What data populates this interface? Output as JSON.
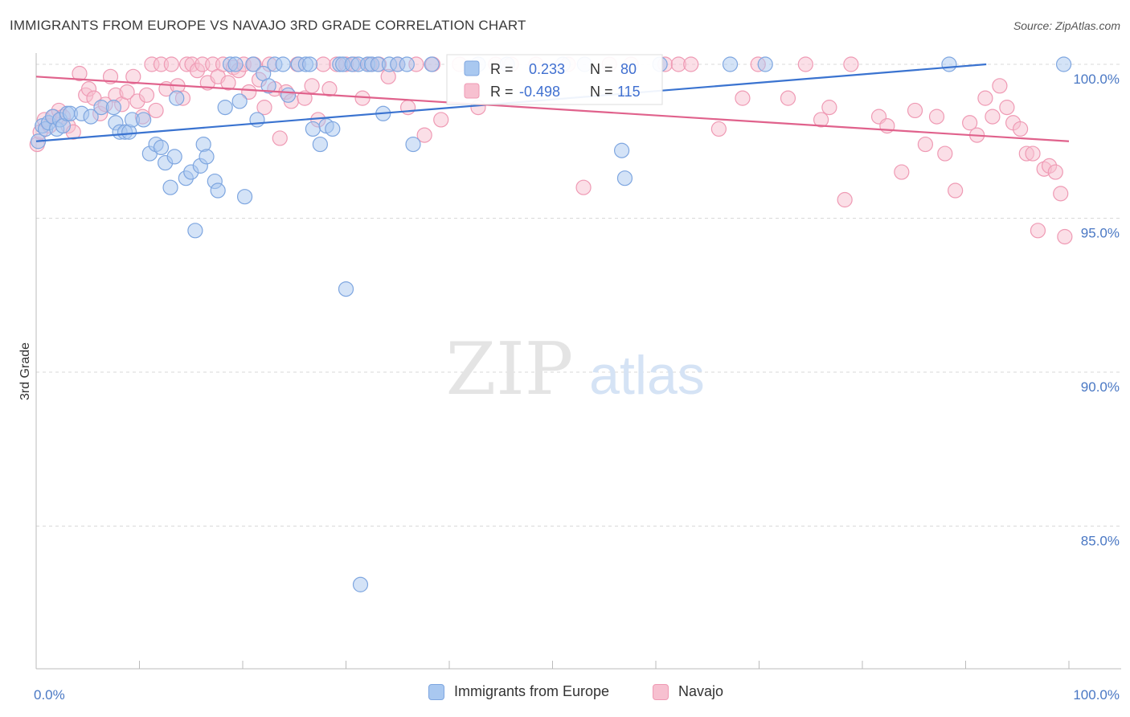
{
  "title": "IMMIGRANTS FROM EUROPE VS NAVAJO 3RD GRADE CORRELATION CHART",
  "source": "Source: ZipAtlas.com",
  "watermark": {
    "zip": "ZIP",
    "atlas": "atlas"
  },
  "legend": {
    "r_label": "R =",
    "n_label": "N =",
    "series": [
      {
        "name": "Immigrants from Europe",
        "r": "0.233",
        "n": "80",
        "color": "#a9c8f0",
        "stroke": "#7ea6e0",
        "line": "#3a73d0"
      },
      {
        "name": "Navajo",
        "r": "-0.498",
        "n": "115",
        "color": "#f7c0d0",
        "stroke": "#ef9ab4",
        "line": "#e0628c"
      }
    ]
  },
  "chart_data": {
    "type": "scatter",
    "title": "IMMIGRANTS FROM EUROPE VS NAVAJO 3RD GRADE CORRELATION CHART",
    "xlabel": "",
    "ylabel": "3rd Grade",
    "xlim": [
      0,
      100
    ],
    "ylim": [
      80.5,
      100.8
    ],
    "x_tick_labels": [
      "0.0%",
      "100.0%"
    ],
    "y_ticks": [
      100,
      95,
      90,
      85
    ],
    "y_tick_labels": [
      "100.0%",
      "95.0%",
      "90.0%",
      "85.0%"
    ],
    "grid": true,
    "legend_position": "top-center",
    "series": [
      {
        "name": "Immigrants from Europe",
        "trend": {
          "x": [
            0,
            92
          ],
          "y": [
            97.5,
            100.0
          ]
        },
        "points": [
          [
            0.2,
            97.5
          ],
          [
            0.6,
            98.0
          ],
          [
            0.9,
            97.9
          ],
          [
            1.2,
            98.1
          ],
          [
            1.6,
            98.3
          ],
          [
            2.0,
            97.9
          ],
          [
            2.3,
            98.2
          ],
          [
            2.6,
            98.0
          ],
          [
            3.0,
            98.4
          ],
          [
            3.3,
            98.4
          ],
          [
            4.4,
            98.4
          ],
          [
            5.3,
            98.3
          ],
          [
            6.3,
            98.6
          ],
          [
            7.5,
            98.6
          ],
          [
            7.7,
            98.1
          ],
          [
            8.1,
            97.8
          ],
          [
            8.6,
            97.8
          ],
          [
            9.0,
            97.8
          ],
          [
            9.3,
            98.2
          ],
          [
            10.4,
            98.2
          ],
          [
            11.0,
            97.1
          ],
          [
            11.6,
            97.4
          ],
          [
            12.1,
            97.3
          ],
          [
            12.5,
            96.8
          ],
          [
            13.0,
            96.0
          ],
          [
            13.4,
            97.0
          ],
          [
            13.6,
            98.9
          ],
          [
            14.5,
            96.3
          ],
          [
            15.0,
            96.5
          ],
          [
            15.4,
            94.6
          ],
          [
            15.9,
            96.7
          ],
          [
            16.2,
            97.4
          ],
          [
            16.5,
            97.0
          ],
          [
            17.3,
            96.2
          ],
          [
            17.6,
            95.9
          ],
          [
            18.3,
            98.6
          ],
          [
            18.8,
            100.0
          ],
          [
            19.3,
            100.0
          ],
          [
            19.7,
            98.8
          ],
          [
            20.2,
            95.7
          ],
          [
            21.0,
            100.0
          ],
          [
            21.4,
            98.2
          ],
          [
            22.0,
            99.7
          ],
          [
            22.5,
            99.3
          ],
          [
            23.1,
            100.0
          ],
          [
            23.9,
            100.0
          ],
          [
            24.4,
            99.0
          ],
          [
            25.4,
            100.0
          ],
          [
            26.1,
            100.0
          ],
          [
            26.5,
            100.0
          ],
          [
            26.8,
            97.9
          ],
          [
            27.5,
            97.4
          ],
          [
            28.1,
            98.0
          ],
          [
            28.7,
            97.9
          ],
          [
            29.4,
            100.0
          ],
          [
            29.7,
            100.0
          ],
          [
            30.0,
            92.7
          ],
          [
            30.6,
            100.0
          ],
          [
            31.2,
            100.0
          ],
          [
            32.1,
            100.0
          ],
          [
            32.5,
            100.0
          ],
          [
            33.1,
            100.0
          ],
          [
            33.6,
            98.4
          ],
          [
            34.2,
            100.0
          ],
          [
            35.0,
            100.0
          ],
          [
            35.9,
            100.0
          ],
          [
            36.5,
            97.4
          ],
          [
            38.3,
            100.0
          ],
          [
            42.8,
            100.0
          ],
          [
            45.6,
            100.0
          ],
          [
            51.0,
            100.0
          ],
          [
            53.1,
            100.0
          ],
          [
            56.7,
            97.2
          ],
          [
            57.0,
            96.3
          ],
          [
            60.4,
            100.0
          ],
          [
            67.2,
            100.0
          ],
          [
            70.6,
            100.0
          ],
          [
            88.4,
            100.0
          ],
          [
            99.5,
            100.0
          ],
          [
            31.4,
            83.1
          ]
        ]
      },
      {
        "name": "Navajo",
        "trend": {
          "x": [
            0,
            100
          ],
          "y": [
            99.6,
            97.5
          ]
        },
        "points": [
          [
            0.1,
            97.4
          ],
          [
            0.4,
            97.8
          ],
          [
            0.8,
            98.2
          ],
          [
            1.3,
            98.0
          ],
          [
            1.7,
            98.3
          ],
          [
            2.2,
            98.5
          ],
          [
            2.6,
            98.3
          ],
          [
            3.1,
            98.0
          ],
          [
            3.6,
            97.8
          ],
          [
            4.2,
            99.7
          ],
          [
            4.8,
            99.0
          ],
          [
            5.1,
            99.2
          ],
          [
            5.6,
            98.9
          ],
          [
            6.2,
            98.4
          ],
          [
            6.7,
            98.7
          ],
          [
            7.2,
            99.6
          ],
          [
            7.7,
            99.0
          ],
          [
            8.3,
            98.7
          ],
          [
            8.8,
            99.1
          ],
          [
            9.4,
            99.6
          ],
          [
            9.8,
            98.8
          ],
          [
            10.3,
            98.3
          ],
          [
            10.7,
            99.0
          ],
          [
            11.2,
            100.0
          ],
          [
            11.6,
            98.5
          ],
          [
            12.1,
            100.0
          ],
          [
            12.6,
            99.2
          ],
          [
            13.1,
            100.0
          ],
          [
            13.7,
            99.3
          ],
          [
            14.2,
            98.9
          ],
          [
            14.6,
            100.0
          ],
          [
            15.1,
            100.0
          ],
          [
            15.6,
            99.8
          ],
          [
            16.1,
            100.0
          ],
          [
            16.6,
            99.4
          ],
          [
            17.1,
            100.0
          ],
          [
            17.6,
            99.6
          ],
          [
            18.1,
            100.0
          ],
          [
            18.6,
            99.4
          ],
          [
            19.1,
            99.9
          ],
          [
            19.6,
            99.8
          ],
          [
            20.1,
            100.0
          ],
          [
            20.6,
            99.1
          ],
          [
            21.1,
            100.0
          ],
          [
            21.6,
            99.5
          ],
          [
            22.1,
            98.6
          ],
          [
            22.6,
            100.0
          ],
          [
            23.1,
            99.2
          ],
          [
            23.6,
            97.6
          ],
          [
            24.2,
            99.1
          ],
          [
            24.7,
            98.8
          ],
          [
            25.3,
            100.0
          ],
          [
            26.0,
            98.9
          ],
          [
            26.7,
            99.3
          ],
          [
            27.3,
            98.2
          ],
          [
            27.8,
            100.0
          ],
          [
            28.4,
            99.2
          ],
          [
            29.1,
            100.0
          ],
          [
            30.0,
            100.0
          ],
          [
            30.8,
            100.0
          ],
          [
            31.6,
            98.9
          ],
          [
            32.3,
            100.0
          ],
          [
            33.2,
            100.0
          ],
          [
            34.1,
            99.6
          ],
          [
            35.0,
            100.0
          ],
          [
            36.0,
            98.6
          ],
          [
            36.8,
            100.0
          ],
          [
            37.6,
            97.7
          ],
          [
            38.4,
            100.0
          ],
          [
            39.2,
            98.2
          ],
          [
            41.0,
            100.0
          ],
          [
            42.8,
            98.6
          ],
          [
            44.5,
            100.0
          ],
          [
            46.0,
            100.0
          ],
          [
            48.4,
            100.0
          ],
          [
            51.5,
            100.0
          ],
          [
            53.0,
            96.0
          ],
          [
            55.5,
            100.0
          ],
          [
            57.6,
            100.0
          ],
          [
            60.9,
            100.0
          ],
          [
            62.2,
            100.0
          ],
          [
            63.4,
            100.0
          ],
          [
            66.1,
            97.9
          ],
          [
            68.4,
            98.9
          ],
          [
            69.9,
            100.0
          ],
          [
            72.8,
            98.9
          ],
          [
            74.5,
            100.0
          ],
          [
            76.0,
            98.2
          ],
          [
            76.8,
            98.6
          ],
          [
            78.3,
            95.6
          ],
          [
            78.9,
            100.0
          ],
          [
            81.6,
            98.3
          ],
          [
            82.4,
            98.0
          ],
          [
            83.8,
            96.5
          ],
          [
            85.1,
            98.5
          ],
          [
            86.1,
            97.4
          ],
          [
            87.2,
            98.3
          ],
          [
            88.0,
            97.1
          ],
          [
            89.0,
            95.9
          ],
          [
            90.4,
            98.1
          ],
          [
            91.1,
            97.7
          ],
          [
            91.9,
            98.9
          ],
          [
            92.6,
            98.3
          ],
          [
            93.3,
            99.3
          ],
          [
            94.0,
            98.6
          ],
          [
            94.6,
            98.1
          ],
          [
            95.3,
            97.9
          ],
          [
            95.9,
            97.1
          ],
          [
            96.5,
            97.1
          ],
          [
            97.0,
            94.6
          ],
          [
            97.6,
            96.6
          ],
          [
            98.1,
            96.7
          ],
          [
            98.7,
            96.5
          ],
          [
            99.2,
            95.8
          ],
          [
            99.6,
            94.4
          ]
        ]
      }
    ]
  }
}
